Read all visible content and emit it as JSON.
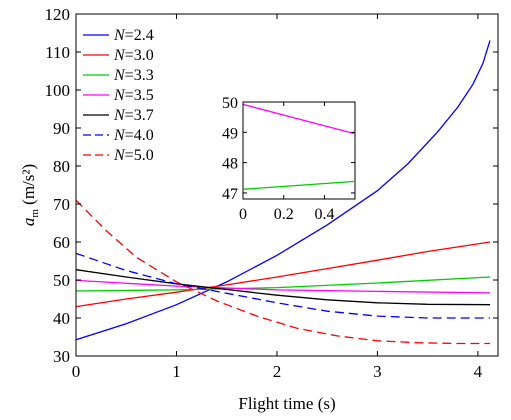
{
  "chart_data": [
    {
      "type": "line",
      "xlabel": "Flight time (s)",
      "ylabel": {
        "base": "a",
        "sub": "m",
        "unit": "(m/s²)"
      },
      "xlim": [
        0,
        4.2
      ],
      "ylim": [
        30,
        120
      ],
      "xticks": [
        0,
        1,
        2,
        3,
        4
      ],
      "yticks": [
        30,
        40,
        50,
        60,
        70,
        80,
        90,
        100,
        110,
        120
      ],
      "grid": false,
      "legend_position": "top-left",
      "series": [
        {
          "name": "2.4",
          "color": "#0000ff",
          "dash": false,
          "x": [
            0,
            0.5,
            1.0,
            1.5,
            2.0,
            2.5,
            3.0,
            3.3,
            3.6,
            3.8,
            3.95,
            4.05,
            4.12
          ],
          "y": [
            34.3,
            38.5,
            43.5,
            49.5,
            56.5,
            64.5,
            73.5,
            80.5,
            89.0,
            95.5,
            101.5,
            107.0,
            113.0
          ]
        },
        {
          "name": "3.0",
          "color": "#ff0000",
          "dash": false,
          "x": [
            0,
            0.5,
            1.0,
            1.5,
            2.0,
            2.5,
            3.0,
            3.5,
            4.12
          ],
          "y": [
            43.0,
            45.0,
            46.8,
            48.7,
            50.8,
            53.0,
            55.2,
            57.5,
            60.0
          ]
        },
        {
          "name": "3.3",
          "color": "#00cc00",
          "dash": false,
          "x": [
            0,
            1.0,
            2.0,
            3.0,
            4.12
          ],
          "y": [
            47.1,
            47.4,
            48.0,
            49.2,
            50.8
          ]
        },
        {
          "name": "3.5",
          "color": "#ff00ff",
          "dash": false,
          "x": [
            0,
            1.0,
            2.0,
            3.0,
            4.12
          ],
          "y": [
            49.9,
            48.4,
            47.4,
            47.0,
            46.6
          ]
        },
        {
          "name": "3.7",
          "color": "#000000",
          "dash": false,
          "x": [
            0,
            0.5,
            1.0,
            1.5,
            2.0,
            2.5,
            3.0,
            3.5,
            4.12
          ],
          "y": [
            52.7,
            50.8,
            49.0,
            47.5,
            46.0,
            44.8,
            44.0,
            43.6,
            43.5
          ]
        },
        {
          "name": "4.0",
          "color": "#0000ff",
          "dash": true,
          "x": [
            0,
            0.5,
            1.0,
            1.5,
            2.0,
            2.5,
            3.0,
            3.5,
            4.12
          ],
          "y": [
            57.0,
            52.5,
            49.0,
            46.5,
            44.0,
            41.8,
            40.5,
            40.0,
            40.0
          ]
        },
        {
          "name": "5.0",
          "color": "#ff0000",
          "dash": true,
          "x": [
            0,
            0.3,
            0.6,
            1.0,
            1.4,
            1.8,
            2.2,
            2.6,
            3.0,
            3.4,
            3.8,
            4.12
          ],
          "y": [
            71.0,
            63.0,
            56.0,
            49.5,
            44.5,
            40.5,
            37.3,
            35.3,
            34.0,
            33.5,
            33.3,
            33.3
          ]
        }
      ]
    },
    {
      "type": "line",
      "role": "inset",
      "xlim": [
        0,
        0.55
      ],
      "ylim": [
        46.8,
        50
      ],
      "xticks": [
        0,
        0.2,
        0.4
      ],
      "xtick_labels": [
        "0",
        "0.2",
        "0.4"
      ],
      "yticks": [
        47,
        48,
        49,
        50
      ],
      "series": [
        {
          "color": "#ff00ff",
          "x": [
            0,
            0.55
          ],
          "y": [
            49.92,
            48.95
          ]
        },
        {
          "color": "#00cc00",
          "x": [
            0,
            0.55
          ],
          "y": [
            47.12,
            47.38
          ]
        }
      ]
    }
  ]
}
